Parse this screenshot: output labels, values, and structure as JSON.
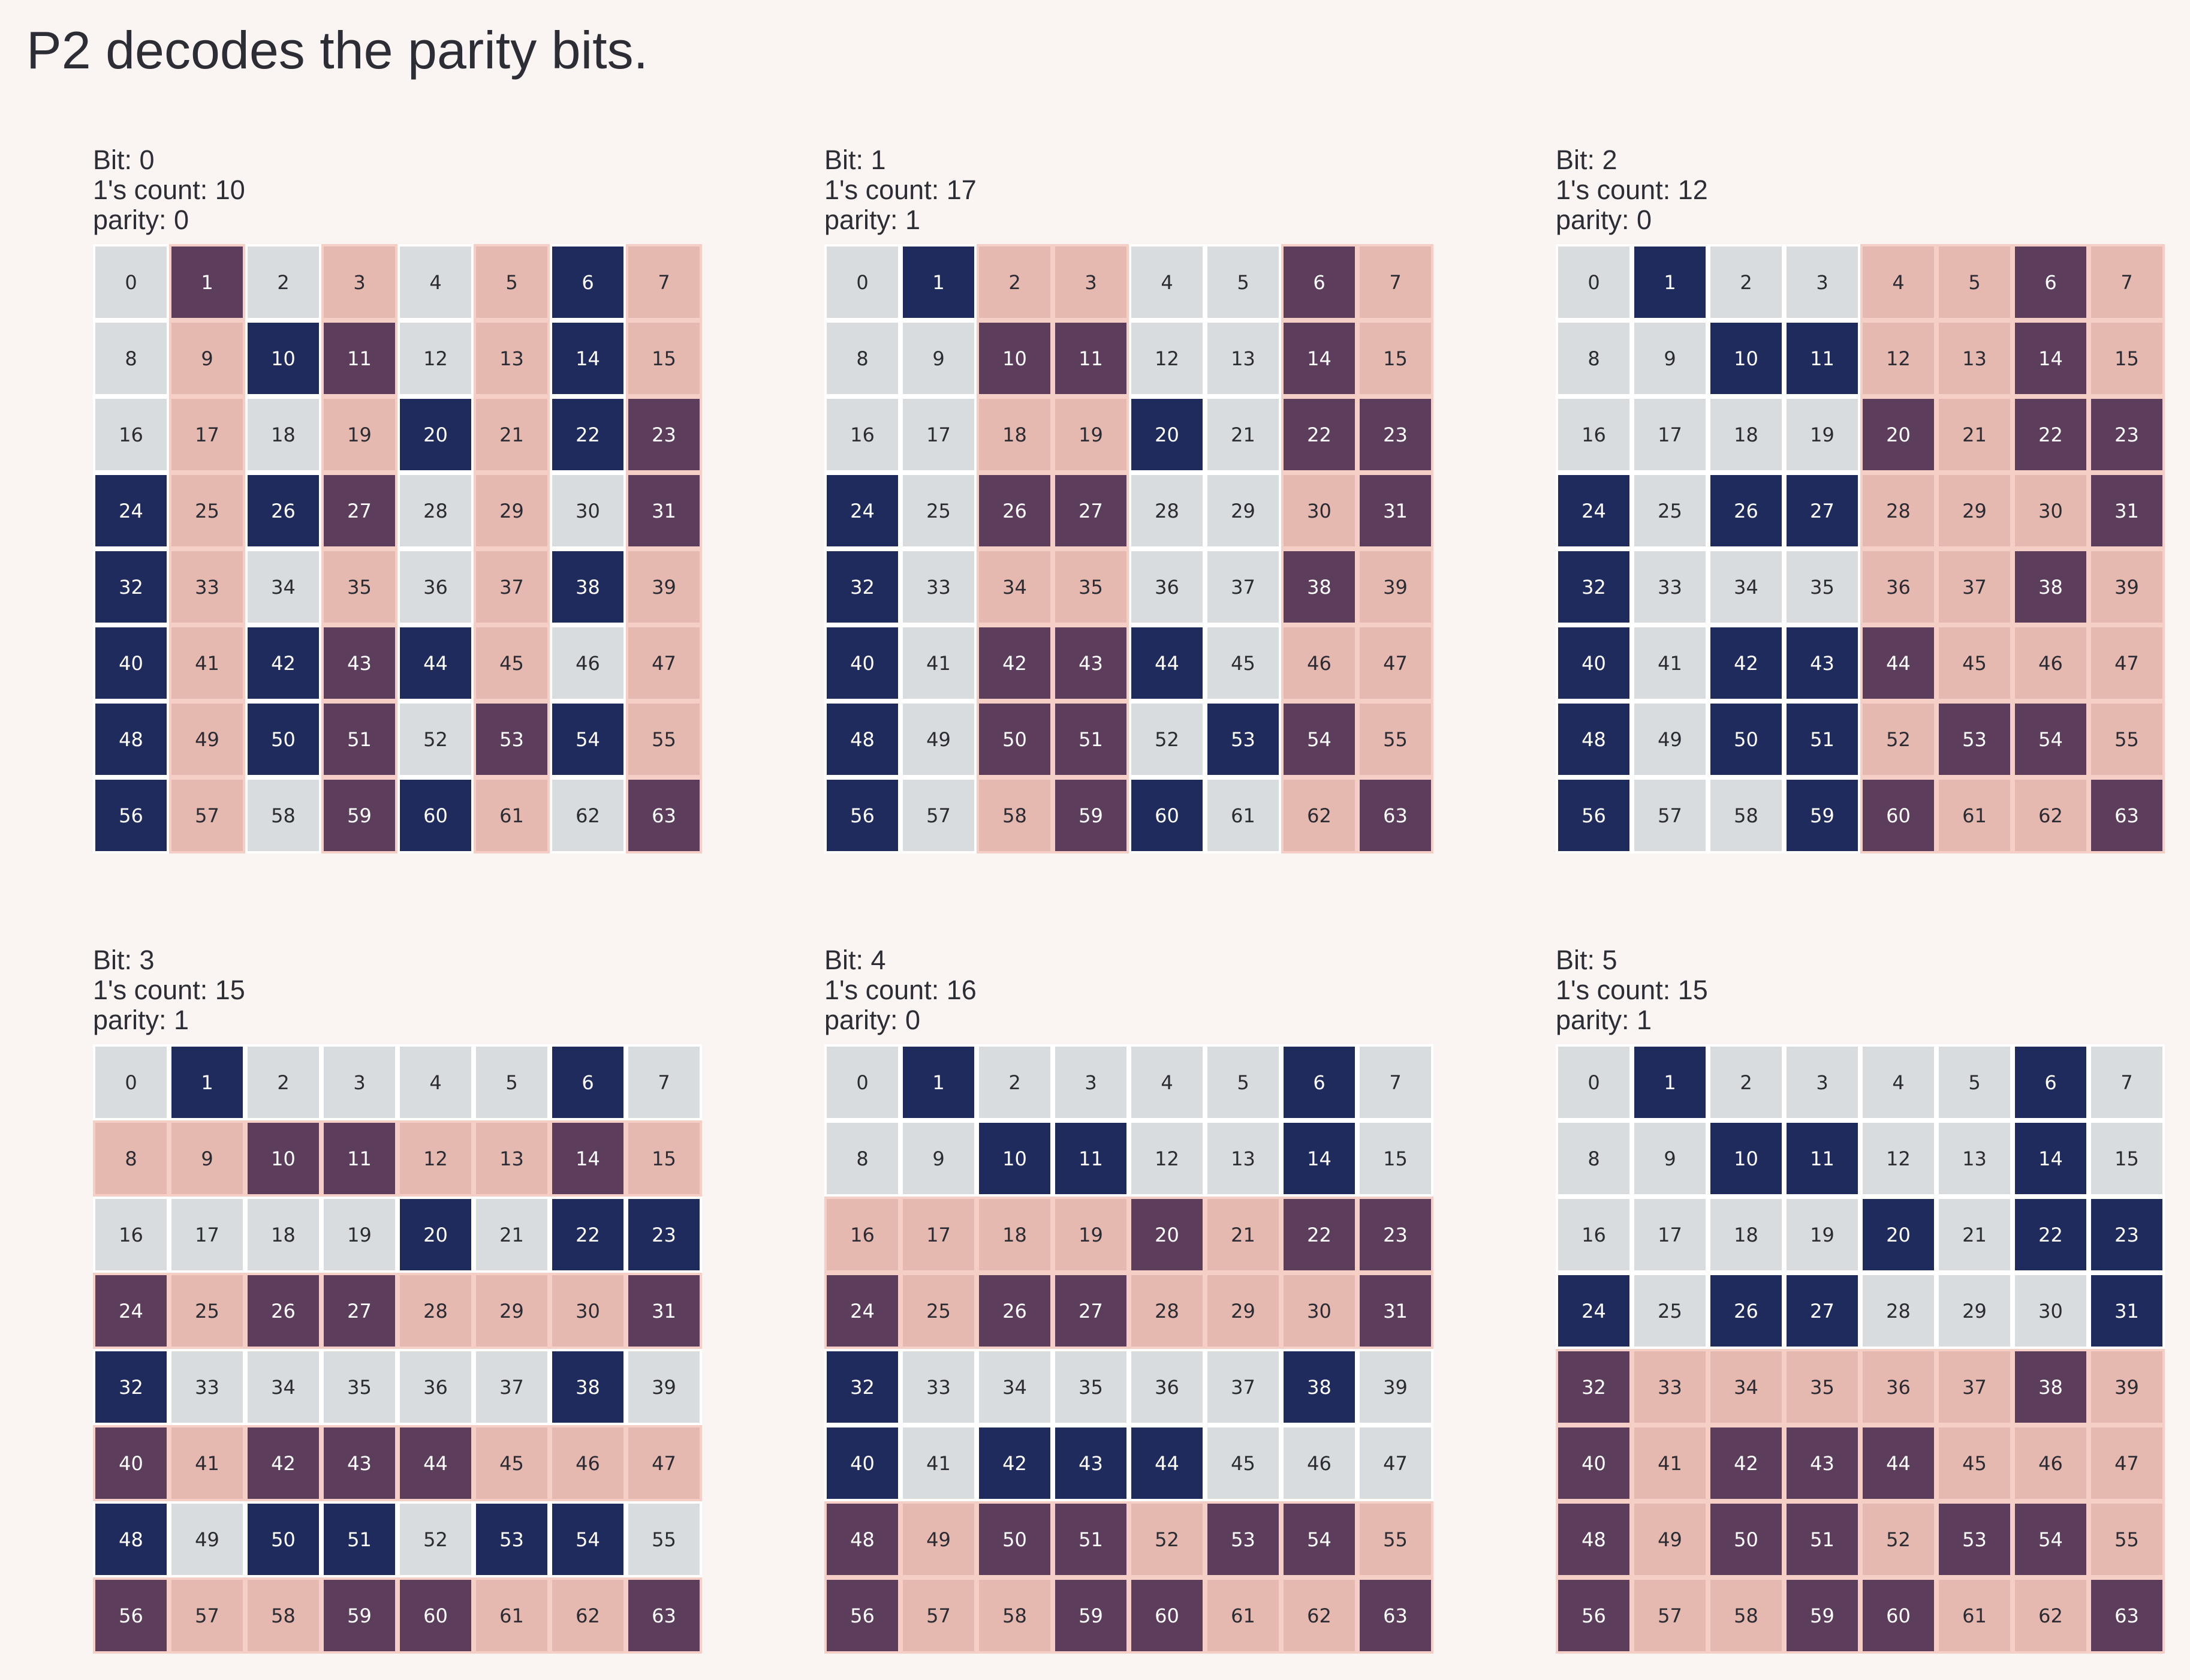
{
  "title": "P2 decodes the parity bits.",
  "colors": {
    "background": "#faf5f2",
    "cell_off": "#d9dcdf",
    "cell_on": "#1f2b5c",
    "cell_off_selected": "#e6b9b0",
    "cell_on_selected": "#5c3d5b",
    "selected_border": "#f5cfc6"
  },
  "on_cells": [
    1,
    6,
    10,
    11,
    14,
    20,
    22,
    23,
    24,
    26,
    27,
    31,
    32,
    38,
    40,
    42,
    43,
    44,
    48,
    50,
    51,
    53,
    54,
    56,
    59,
    60,
    63
  ],
  "panels": [
    {
      "bit_line": "Bit: 0",
      "count_line": "1's count: 10",
      "parity_line": "parity: 0",
      "bit": 0
    },
    {
      "bit_line": "Bit: 1",
      "count_line": "1's count: 17",
      "parity_line": "parity: 1",
      "bit": 1
    },
    {
      "bit_line": "Bit: 2",
      "count_line": "1's count: 12",
      "parity_line": "parity: 0",
      "bit": 2
    },
    {
      "bit_line": "Bit: 3",
      "count_line": "1's count: 15",
      "parity_line": "parity: 1",
      "bit": 3
    },
    {
      "bit_line": "Bit: 4",
      "count_line": "1's count: 16",
      "parity_line": "parity: 0",
      "bit": 4
    },
    {
      "bit_line": "Bit: 5",
      "count_line": "1's count: 15",
      "parity_line": "parity: 1",
      "bit": 5
    }
  ]
}
